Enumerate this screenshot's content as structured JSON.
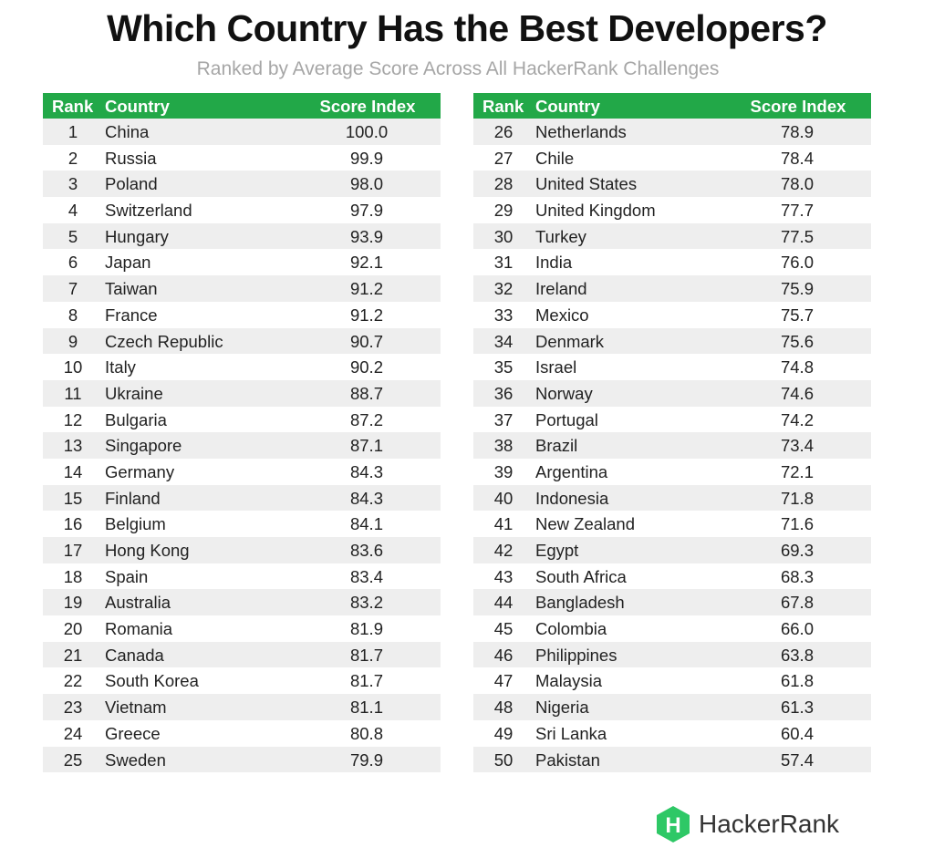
{
  "chart_data": {
    "type": "table",
    "title": "Which Country Has the Best Developers?",
    "subtitle": "Ranked by Average Score Across All HackerRank Challenges",
    "columns": [
      "Rank",
      "Country",
      "Score Index"
    ],
    "rows": [
      {
        "rank": "1",
        "country": "China",
        "score": "100.0"
      },
      {
        "rank": "2",
        "country": "Russia",
        "score": "99.9"
      },
      {
        "rank": "3",
        "country": "Poland",
        "score": "98.0"
      },
      {
        "rank": "4",
        "country": "Switzerland",
        "score": "97.9"
      },
      {
        "rank": "5",
        "country": "Hungary",
        "score": "93.9"
      },
      {
        "rank": "6",
        "country": "Japan",
        "score": "92.1"
      },
      {
        "rank": "7",
        "country": "Taiwan",
        "score": "91.2"
      },
      {
        "rank": "8",
        "country": "France",
        "score": "91.2"
      },
      {
        "rank": "9",
        "country": "Czech Republic",
        "score": "90.7"
      },
      {
        "rank": "10",
        "country": "Italy",
        "score": "90.2"
      },
      {
        "rank": "11",
        "country": "Ukraine",
        "score": "88.7"
      },
      {
        "rank": "12",
        "country": "Bulgaria",
        "score": "87.2"
      },
      {
        "rank": "13",
        "country": "Singapore",
        "score": "87.1"
      },
      {
        "rank": "14",
        "country": "Germany",
        "score": "84.3"
      },
      {
        "rank": "15",
        "country": "Finland",
        "score": "84.3"
      },
      {
        "rank": "16",
        "country": "Belgium",
        "score": "84.1"
      },
      {
        "rank": "17",
        "country": "Hong Kong",
        "score": "83.6"
      },
      {
        "rank": "18",
        "country": "Spain",
        "score": "83.4"
      },
      {
        "rank": "19",
        "country": "Australia",
        "score": "83.2"
      },
      {
        "rank": "20",
        "country": "Romania",
        "score": "81.9"
      },
      {
        "rank": "21",
        "country": "Canada",
        "score": "81.7"
      },
      {
        "rank": "22",
        "country": "South Korea",
        "score": "81.7"
      },
      {
        "rank": "23",
        "country": "Vietnam",
        "score": "81.1"
      },
      {
        "rank": "24",
        "country": "Greece",
        "score": "80.8"
      },
      {
        "rank": "25",
        "country": "Sweden",
        "score": "79.9"
      },
      {
        "rank": "26",
        "country": "Netherlands",
        "score": "78.9"
      },
      {
        "rank": "27",
        "country": "Chile",
        "score": "78.4"
      },
      {
        "rank": "28",
        "country": "United States",
        "score": "78.0"
      },
      {
        "rank": "29",
        "country": "United Kingdom",
        "score": "77.7"
      },
      {
        "rank": "30",
        "country": "Turkey",
        "score": "77.5"
      },
      {
        "rank": "31",
        "country": "India",
        "score": "76.0"
      },
      {
        "rank": "32",
        "country": "Ireland",
        "score": "75.9"
      },
      {
        "rank": "33",
        "country": "Mexico",
        "score": "75.7"
      },
      {
        "rank": "34",
        "country": "Denmark",
        "score": "75.6"
      },
      {
        "rank": "35",
        "country": "Israel",
        "score": "74.8"
      },
      {
        "rank": "36",
        "country": "Norway",
        "score": "74.6"
      },
      {
        "rank": "37",
        "country": "Portugal",
        "score": "74.2"
      },
      {
        "rank": "38",
        "country": "Brazil",
        "score": "73.4"
      },
      {
        "rank": "39",
        "country": "Argentina",
        "score": "72.1"
      },
      {
        "rank": "40",
        "country": "Indonesia",
        "score": "71.8"
      },
      {
        "rank": "41",
        "country": "New Zealand",
        "score": "71.6"
      },
      {
        "rank": "42",
        "country": "Egypt",
        "score": "69.3"
      },
      {
        "rank": "43",
        "country": "South Africa",
        "score": "68.3"
      },
      {
        "rank": "44",
        "country": "Bangladesh",
        "score": "67.8"
      },
      {
        "rank": "45",
        "country": "Colombia",
        "score": "66.0"
      },
      {
        "rank": "46",
        "country": "Philippines",
        "score": "63.8"
      },
      {
        "rank": "47",
        "country": "Malaysia",
        "score": "61.8"
      },
      {
        "rank": "48",
        "country": "Nigeria",
        "score": "61.3"
      },
      {
        "rank": "49",
        "country": "Sri Lanka",
        "score": "60.4"
      },
      {
        "rank": "50",
        "country": "Pakistan",
        "score": "57.4"
      }
    ]
  },
  "brand": {
    "name": "HackerRank",
    "logo_icon": "hackerrank-hexagon-icon",
    "logo_letter": "H"
  },
  "colors": {
    "header_bg": "#22a848",
    "header_text": "#ffffff",
    "stripe": "#eeeeee",
    "subtitle": "#a6a6a6",
    "brand_green": "#2ec866"
  }
}
